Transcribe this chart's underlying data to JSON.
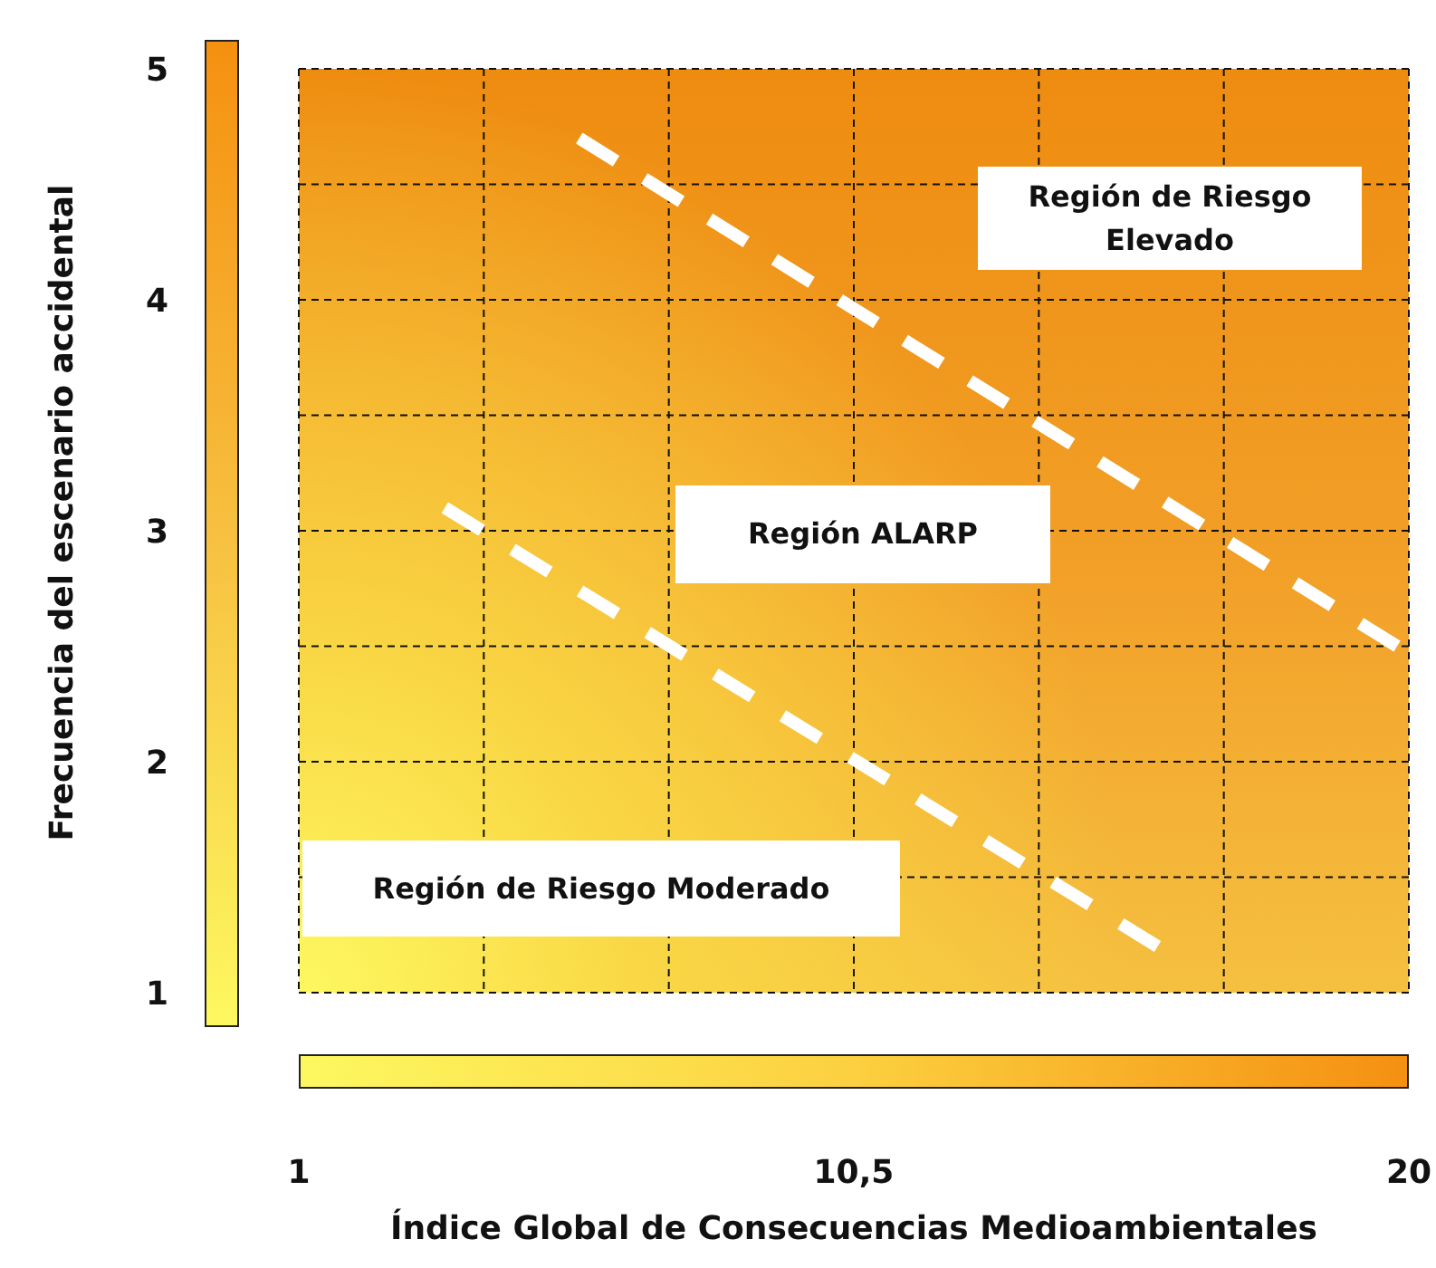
{
  "chart_data": {
    "type": "line",
    "xlabel": "Índice Global de Consecuencias Medioambientales",
    "ylabel": "Frecuencia del escenario accidental",
    "xlim": [
      1,
      20
    ],
    "ylim": [
      1,
      5
    ],
    "xticks": [
      1,
      {
        "value": 4.1667,
        "label": null
      },
      {
        "value": 7.3333,
        "label": null
      },
      {
        "value": 10.5,
        "label": "10,5"
      },
      {
        "value": 13.6667,
        "label": null
      },
      {
        "value": 16.8333,
        "label": null
      },
      20
    ],
    "yticks": [
      1,
      {
        "value": 1.5,
        "label": null
      },
      2,
      {
        "value": 2.5,
        "label": null
      },
      3,
      {
        "value": 3.5,
        "label": null
      },
      4,
      {
        "value": 4.5,
        "label": null
      },
      5
    ],
    "grid": true,
    "line_style": "dashed",
    "marker": "none",
    "series": [
      {
        "color": "#ffffff",
        "x": [
          5.8,
          19.8
        ],
        "values": [
          4.7,
          2.5
        ]
      },
      {
        "color": "#ffffff",
        "x": [
          3.5,
          15.7
        ],
        "values": [
          3.1,
          1.2
        ]
      }
    ],
    "annotations": [
      "Región de Riesgo Elevado",
      "Región ALARP",
      "Región de Riesgo Moderado"
    ]
  }
}
